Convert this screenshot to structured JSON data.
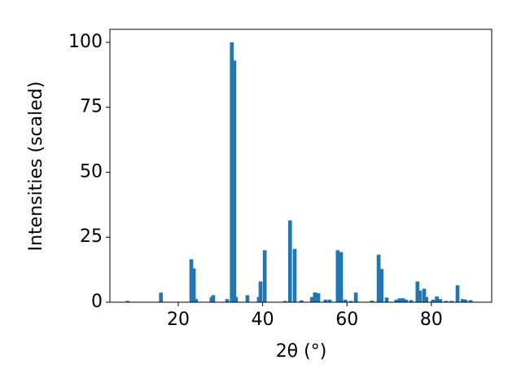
{
  "chart_data": {
    "type": "bar",
    "xlabel": "2θ (°)",
    "ylabel": "Intensities (scaled)",
    "color": "#1f77b4",
    "x": [
      8.0,
      15.9,
      23.1,
      23.7,
      24.2,
      27.9,
      28.3,
      31.6,
      32.7,
      33.3,
      33.7,
      36.4,
      39.1,
      39.5,
      40.5,
      45.3,
      46.5,
      47.6,
      49.2,
      51.7,
      52.4,
      53.2,
      54.9,
      55.9,
      57.8,
      58.6,
      59.6,
      60.9,
      62.1,
      65.9,
      67.5,
      68.2,
      69.4,
      71.7,
      72.5,
      73.3,
      74.0,
      75.2,
      76.7,
      77.3,
      78.3,
      78.8,
      80.4,
      81.3,
      82.1,
      83.5,
      84.8,
      86.2,
      87.4,
      88.1,
      89.3
    ],
    "values": [
      0.5,
      3.7,
      16.5,
      13,
      1.2,
      2,
      2.7,
      1.2,
      100,
      93,
      2,
      2.7,
      2,
      8,
      20,
      0.5,
      31.5,
      20.5,
      0.7,
      2,
      3.8,
      3.5,
      1,
      1,
      20,
      19.3,
      1,
      0.5,
      3.7,
      0.6,
      18.3,
      12.8,
      1.8,
      1,
      1.5,
      1.5,
      1,
      0.8,
      8,
      4.5,
      5.2,
      2,
      1,
      2.2,
      1.2,
      0.5,
      0.5,
      6.5,
      1.2,
      1,
      0.8
    ],
    "xlim": [
      3.8,
      94.3
    ],
    "xticks": [
      20,
      40,
      60,
      80
    ],
    "ylim": [
      0,
      105
    ],
    "yticks": [
      0,
      25,
      50,
      75,
      100
    ]
  }
}
